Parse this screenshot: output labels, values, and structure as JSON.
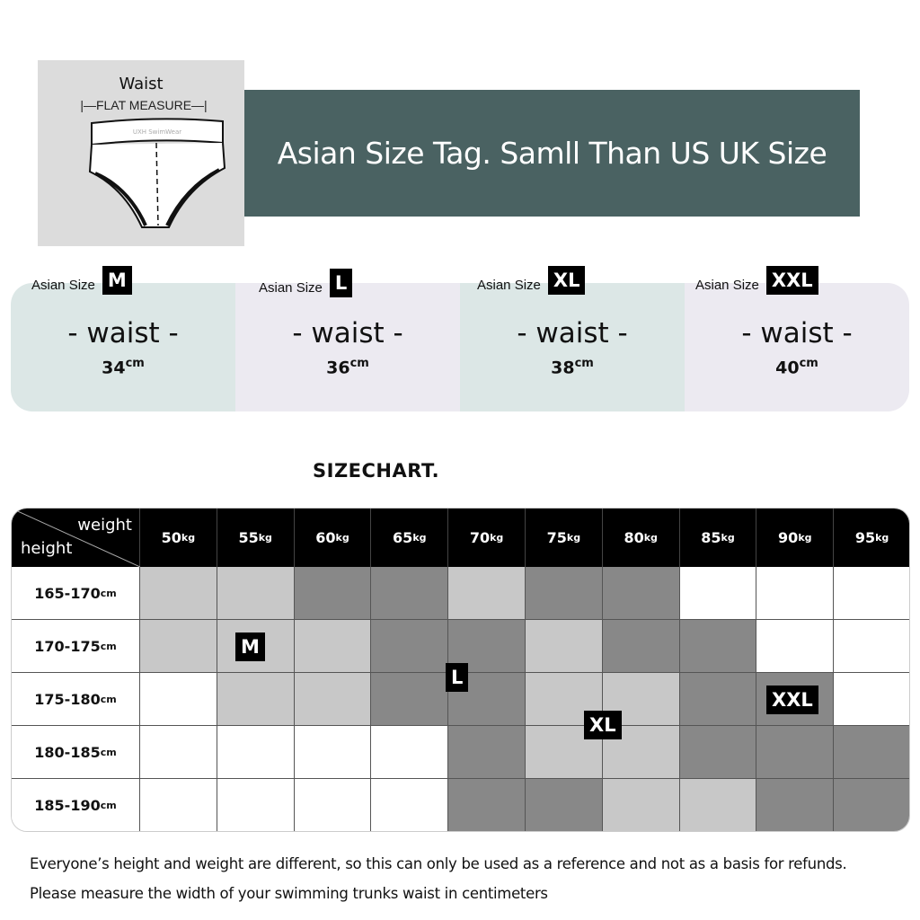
{
  "illustration": {
    "title": "Waist",
    "measure_label": "FLAT MEASURE",
    "brand_text": "UXH SwimWear"
  },
  "banner": {
    "text": "Asian Size Tag.  Samll Than US UK Size",
    "color": "#4a6262"
  },
  "size_cards": [
    {
      "prefix": "Asian Size",
      "size": "M",
      "label": "-  waist -",
      "value": "34",
      "unit": "cm",
      "color": "#dce7e6"
    },
    {
      "prefix": "Asian Size",
      "size": "L",
      "label": "-  waist -",
      "value": "36",
      "unit": "cm",
      "color": "#eceaf1"
    },
    {
      "prefix": "Asian Size",
      "size": "XL",
      "label": "-  waist -",
      "value": "38",
      "unit": "cm",
      "color": "#dce7e6"
    },
    {
      "prefix": "Asian Size",
      "size": "XXL",
      "label": "-  waist -",
      "value": "40",
      "unit": "cm",
      "color": "#eceaf1"
    }
  ],
  "size_chart": {
    "title": "SIZECHART.",
    "corner_top": "weight",
    "corner_bottom": "height",
    "weights": [
      {
        "v": "50",
        "u": "kg"
      },
      {
        "v": "55",
        "u": "kg"
      },
      {
        "v": "60",
        "u": "kg"
      },
      {
        "v": "65",
        "u": "kg"
      },
      {
        "v": "70",
        "u": "kg"
      },
      {
        "v": "75",
        "u": "kg"
      },
      {
        "v": "80",
        "u": "kg"
      },
      {
        "v": "85",
        "u": "kg"
      },
      {
        "v": "90",
        "u": "kg"
      },
      {
        "v": "95",
        "u": "kg"
      }
    ],
    "heights": [
      {
        "v": "165-170",
        "u": "cm"
      },
      {
        "v": "170-175",
        "u": "cm"
      },
      {
        "v": "175-180",
        "u": "cm"
      },
      {
        "v": "180-185",
        "u": "cm"
      },
      {
        "v": "185-190",
        "u": "cm"
      }
    ],
    "shade_colors": {
      "W": "#ffffff",
      "L": "#c8c8c8",
      "D": "#888888"
    },
    "cells": [
      [
        "L",
        "L",
        "D",
        "D",
        "L",
        "D",
        "D",
        "W",
        "W",
        "W"
      ],
      [
        "L",
        "L",
        "L",
        "D",
        "D",
        "L",
        "D",
        "D",
        "W",
        "W"
      ],
      [
        "W",
        "L",
        "L",
        "D",
        "D",
        "L",
        "L",
        "D",
        "D",
        "W"
      ],
      [
        "W",
        "W",
        "W",
        "W",
        "D",
        "L",
        "L",
        "D",
        "D",
        "D"
      ],
      [
        "W",
        "W",
        "W",
        "W",
        "D",
        "D",
        "L",
        "L",
        "D",
        "D"
      ]
    ],
    "tags": [
      "M",
      "L",
      "XL",
      "XXL"
    ]
  },
  "notes": [
    "Everyone’s height and weight are different, so this can only be used as a reference and not as a basis for refunds.",
    "Please measure the width of your swimming trunks waist in centimeters"
  ]
}
